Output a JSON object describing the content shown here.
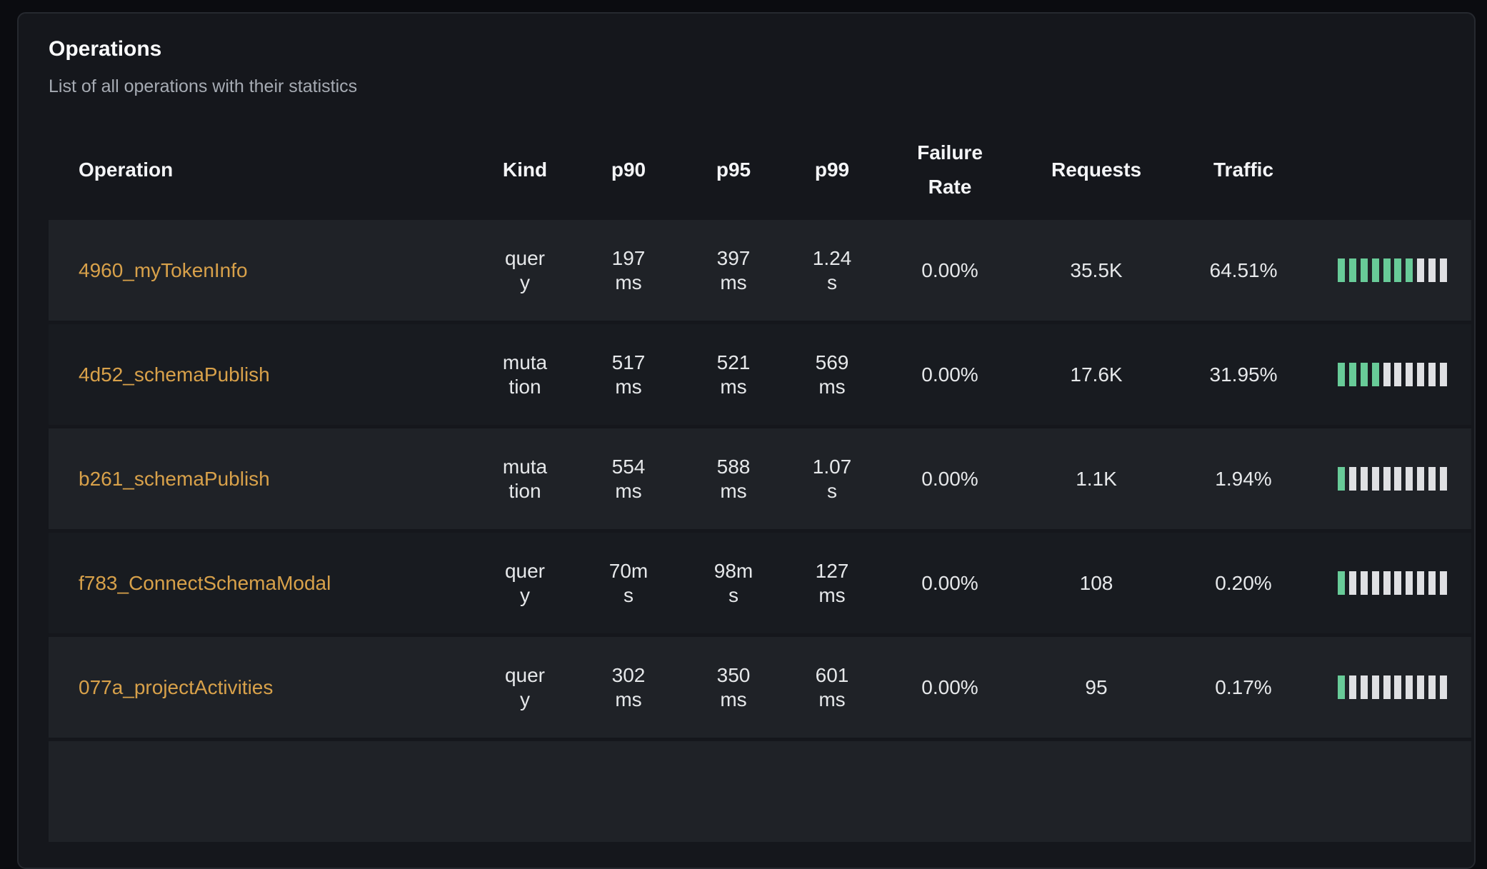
{
  "panel": {
    "title": "Operations",
    "subtitle": "List of all operations with their statistics"
  },
  "table": {
    "columns": {
      "operation": "Operation",
      "kind": "Kind",
      "p90": "p90",
      "p95": "p95",
      "p99": "p99",
      "failure_rate": "Failure Rate",
      "requests": "Requests",
      "traffic": "Traffic"
    },
    "rows": [
      {
        "operation": "4960_myTokenInfo",
        "kind": "query",
        "p90": "197ms",
        "p95": "397ms",
        "p99": "1.24s",
        "failure_rate": "0.00%",
        "requests": "35.5K",
        "traffic": "64.51%",
        "traffic_bars": {
          "total": 10,
          "filled": 7
        }
      },
      {
        "operation": "4d52_schemaPublish",
        "kind": "mutation",
        "p90": "517ms",
        "p95": "521ms",
        "p99": "569ms",
        "failure_rate": "0.00%",
        "requests": "17.6K",
        "traffic": "31.95%",
        "traffic_bars": {
          "total": 10,
          "filled": 4
        }
      },
      {
        "operation": "b261_schemaPublish",
        "kind": "mutation",
        "p90": "554ms",
        "p95": "588ms",
        "p99": "1.07s",
        "failure_rate": "0.00%",
        "requests": "1.1K",
        "traffic": "1.94%",
        "traffic_bars": {
          "total": 10,
          "filled": 1
        }
      },
      {
        "operation": "f783_ConnectSchemaModal",
        "kind": "query",
        "p90": "70ms",
        "p95": "98ms",
        "p99": "127ms",
        "failure_rate": "0.00%",
        "requests": "108",
        "traffic": "0.20%",
        "traffic_bars": {
          "total": 10,
          "filled": 1
        }
      },
      {
        "operation": "077a_projectActivities",
        "kind": "query",
        "p90": "302ms",
        "p95": "350ms",
        "p99": "601ms",
        "failure_rate": "0.00%",
        "requests": "95",
        "traffic": "0.17%",
        "traffic_bars": {
          "total": 10,
          "filled": 1
        }
      }
    ]
  },
  "colors": {
    "accent_link": "#d8a14a",
    "bar_filled": "#68cb98",
    "bar_empty": "#dfe0e3",
    "row_odd_bg": "#1f2227",
    "row_even_bg": "#181b20",
    "panel_bg": "#15171c"
  }
}
